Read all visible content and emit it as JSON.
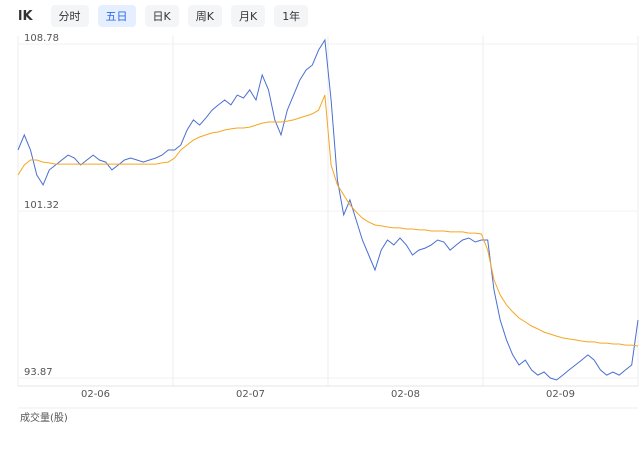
{
  "toolbar": {
    "logo": "lK",
    "tabs": [
      "分时",
      "五日",
      "日K",
      "周K",
      "月K",
      "1年"
    ],
    "active": 1
  },
  "chart_data": {
    "type": "line",
    "ylim": [
      93.87,
      108.78
    ],
    "yticks": [
      108.78,
      101.32,
      93.87
    ],
    "day_labels": [
      "02-06",
      "02-07",
      "02-08",
      "02-09"
    ],
    "volume_label": "成交量(股)",
    "series": [
      {
        "name": "price",
        "color": "#4a6fd0",
        "values": [
          104.05,
          104.72,
          104.05,
          102.93,
          102.49,
          103.16,
          103.38,
          103.6,
          103.82,
          103.69,
          103.38,
          103.6,
          103.82,
          103.6,
          103.51,
          103.16,
          103.38,
          103.6,
          103.69,
          103.6,
          103.51,
          103.6,
          103.69,
          103.82,
          104.05,
          104.05,
          104.27,
          104.94,
          105.39,
          105.16,
          105.48,
          105.83,
          106.06,
          106.28,
          106.06,
          106.5,
          106.37,
          106.73,
          106.28,
          107.4,
          106.73,
          105.39,
          104.72,
          105.83,
          106.5,
          107.17,
          107.62,
          107.84,
          108.51,
          108.96,
          106.28,
          102.71,
          101.15,
          101.82,
          100.92,
          100.03,
          99.36,
          98.69,
          99.58,
          100.03,
          99.81,
          100.12,
          99.81,
          99.36,
          99.58,
          99.67,
          99.81,
          100.03,
          99.94,
          99.58,
          99.81,
          100.03,
          100.12,
          99.94,
          100.03,
          100.03,
          97.8,
          96.46,
          95.57,
          94.9,
          94.45,
          94.67,
          94.23,
          94.0,
          94.14,
          93.87,
          93.78,
          94.0,
          94.23,
          94.45,
          94.67,
          94.9,
          94.67,
          94.23,
          94.0,
          94.14,
          94.0,
          94.23,
          94.45,
          96.46
        ]
      },
      {
        "name": "average",
        "color": "#f5a623",
        "values": [
          102.93,
          103.38,
          103.6,
          103.6,
          103.51,
          103.47,
          103.42,
          103.42,
          103.42,
          103.42,
          103.42,
          103.42,
          103.42,
          103.42,
          103.42,
          103.42,
          103.42,
          103.42,
          103.42,
          103.42,
          103.42,
          103.42,
          103.42,
          103.47,
          103.51,
          103.69,
          104.05,
          104.27,
          104.49,
          104.63,
          104.72,
          104.81,
          104.85,
          104.94,
          104.99,
          105.03,
          105.03,
          105.07,
          105.16,
          105.25,
          105.3,
          105.3,
          105.3,
          105.34,
          105.39,
          105.48,
          105.57,
          105.66,
          105.83,
          106.5,
          103.38,
          102.49,
          102.04,
          101.6,
          101.28,
          101.01,
          100.83,
          100.7,
          100.66,
          100.61,
          100.57,
          100.57,
          100.52,
          100.52,
          100.48,
          100.48,
          100.43,
          100.43,
          100.43,
          100.39,
          100.39,
          100.39,
          100.34,
          100.34,
          100.3,
          99.58,
          98.25,
          97.58,
          97.13,
          96.82,
          96.55,
          96.37,
          96.19,
          96.06,
          95.92,
          95.83,
          95.74,
          95.66,
          95.61,
          95.57,
          95.52,
          95.48,
          95.48,
          95.43,
          95.43,
          95.39,
          95.39,
          95.34,
          95.34,
          95.3
        ]
      }
    ]
  }
}
